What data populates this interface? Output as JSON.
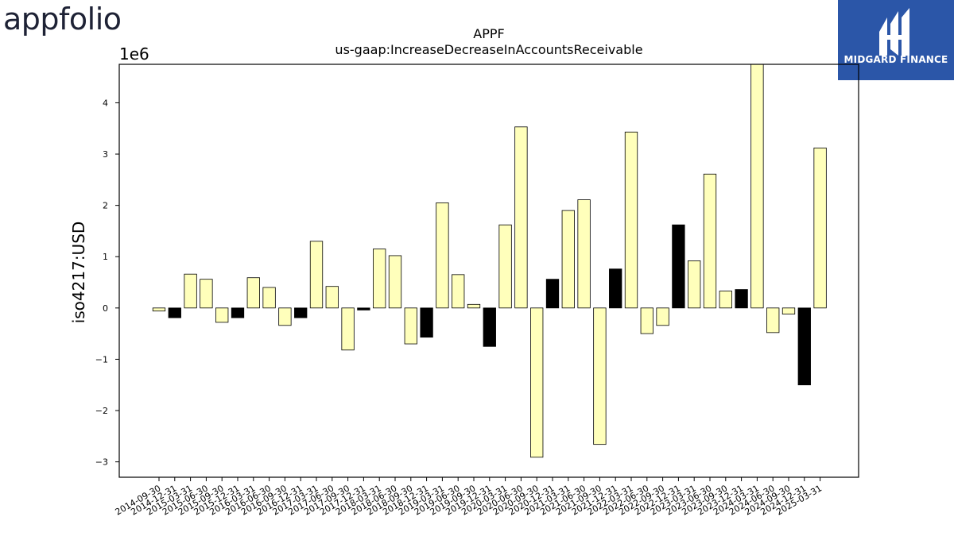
{
  "branding": {
    "left_logo_text": "appfolio",
    "right_logo_text": "MIDGARD FINANCE",
    "right_logo_color": "#2b56a8"
  },
  "colors": {
    "positive_bar": "#ffffbb",
    "negative_highlight_bar": "#000000",
    "bar_edge": "#000000"
  },
  "chart_data": {
    "type": "bar",
    "title": "APPF",
    "subtitle": "us-gaap:IncreaseDecreaseInAccountsReceivable",
    "xlabel": "",
    "ylabel": "iso4217:USD",
    "y_scale_label": "1e6",
    "ylim": [
      -3.3,
      4.75
    ],
    "yticks": [
      -3,
      -2,
      -1,
      0,
      1,
      2,
      3,
      4
    ],
    "ytick_labels": [
      "−3",
      "−2",
      "−1",
      "0",
      "1",
      "2",
      "3",
      "4"
    ],
    "grid": false,
    "categories": [
      "2014-09-30",
      "2014-12-31",
      "2015-03-31",
      "2015-06-30",
      "2015-09-30",
      "2015-12-31",
      "2016-03-31",
      "2016-06-30",
      "2016-09-30",
      "2016-12-31",
      "2017-03-31",
      "2017-06-30",
      "2017-09-30",
      "2017-12-31",
      "2018-03-31",
      "2018-06-30",
      "2018-09-30",
      "2018-12-31",
      "2019-03-31",
      "2019-06-30",
      "2019-09-30",
      "2019-12-31",
      "2020-03-31",
      "2020-06-30",
      "2020-09-30",
      "2020-12-31",
      "2021-03-31",
      "2021-06-30",
      "2021-09-30",
      "2021-12-31",
      "2022-03-31",
      "2022-06-30",
      "2022-09-30",
      "2022-12-31",
      "2023-03-31",
      "2023-06-30",
      "2023-09-30",
      "2023-12-31",
      "2024-03-31",
      "2024-06-30",
      "2024-09-30",
      "2024-12-31",
      "2025-03-31"
    ],
    "values": [
      -0.06,
      -0.19,
      0.66,
      0.56,
      -0.28,
      -0.19,
      0.59,
      0.4,
      -0.34,
      -0.19,
      1.3,
      0.42,
      -0.82,
      -0.04,
      1.15,
      1.02,
      -0.7,
      -0.57,
      2.05,
      0.65,
      0.07,
      -0.75,
      1.62,
      3.53,
      -2.91,
      0.56,
      1.9,
      2.11,
      -2.66,
      0.76,
      3.43,
      -0.5,
      -0.34,
      1.62,
      0.92,
      2.61,
      0.33,
      0.36,
      4.75,
      -0.48,
      -0.12,
      -1.5,
      3.12
    ],
    "highlight": [
      false,
      true,
      false,
      false,
      false,
      true,
      false,
      false,
      false,
      true,
      false,
      false,
      false,
      true,
      false,
      false,
      false,
      true,
      false,
      false,
      false,
      true,
      false,
      false,
      false,
      true,
      false,
      false,
      false,
      true,
      false,
      false,
      false,
      true,
      false,
      false,
      false,
      true,
      false,
      false,
      false,
      true,
      false
    ]
  }
}
